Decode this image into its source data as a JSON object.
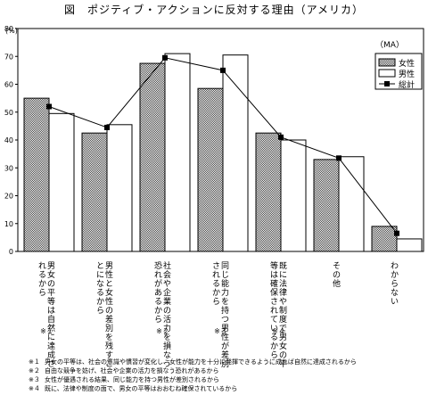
{
  "chart_data": {
    "type": "bar",
    "title": "図　ポジティブ・アクションに反対する理由（アメリカ）",
    "ylabel": "(%)",
    "unit_note": "（MA）",
    "ylim": [
      0,
      80
    ],
    "yticks": [
      "0",
      "10",
      "20",
      "30",
      "40",
      "50",
      "60",
      "70",
      "80"
    ],
    "categories": [
      "男女の平等は自然に達成されるから",
      "男性と女性の差別を残すことになるから",
      "社会や企業の活力を損なう恐れがあるから",
      "同じ能力を持つ男性が差別されるから",
      "既に法律や制度で男女の平等は確保されているから",
      "その他",
      "わからない"
    ],
    "category_marks": [
      "※１",
      "",
      "※２",
      "※３",
      "※４",
      "",
      ""
    ],
    "series": [
      {
        "name": "女性",
        "values": [
          55,
          42.5,
          67.5,
          58.5,
          42.5,
          33,
          9
        ],
        "color": "#7f7f7f",
        "pattern": "hatch"
      },
      {
        "name": "男性",
        "values": [
          49.5,
          45.5,
          71,
          70.5,
          40,
          34,
          4.5
        ],
        "color": "#ffffff"
      },
      {
        "name": "総計",
        "values": [
          52,
          44.5,
          69.5,
          65,
          41,
          33.5,
          6.5
        ],
        "type": "line",
        "color": "#000000",
        "marker": "square"
      }
    ],
    "legend_position": "top-right",
    "grid": false
  },
  "footnotes": [
    {
      "mark": "※１",
      "text": "男女の平等は、社会の意識や慣習が変化し、女性が能力を十分に発揮できるように成れば自然に達成されるから"
    },
    {
      "mark": "※２",
      "text": "自由な競争を妨げ、社会や企業の活力を損なう恐れがあるから"
    },
    {
      "mark": "※３",
      "text": "女性が優遇される結果、同じ能力を持つ男性が差別されるから"
    },
    {
      "mark": "※４",
      "text": "既に、法律や制度の面で、男女の平等はおおむね確保されているから"
    }
  ]
}
